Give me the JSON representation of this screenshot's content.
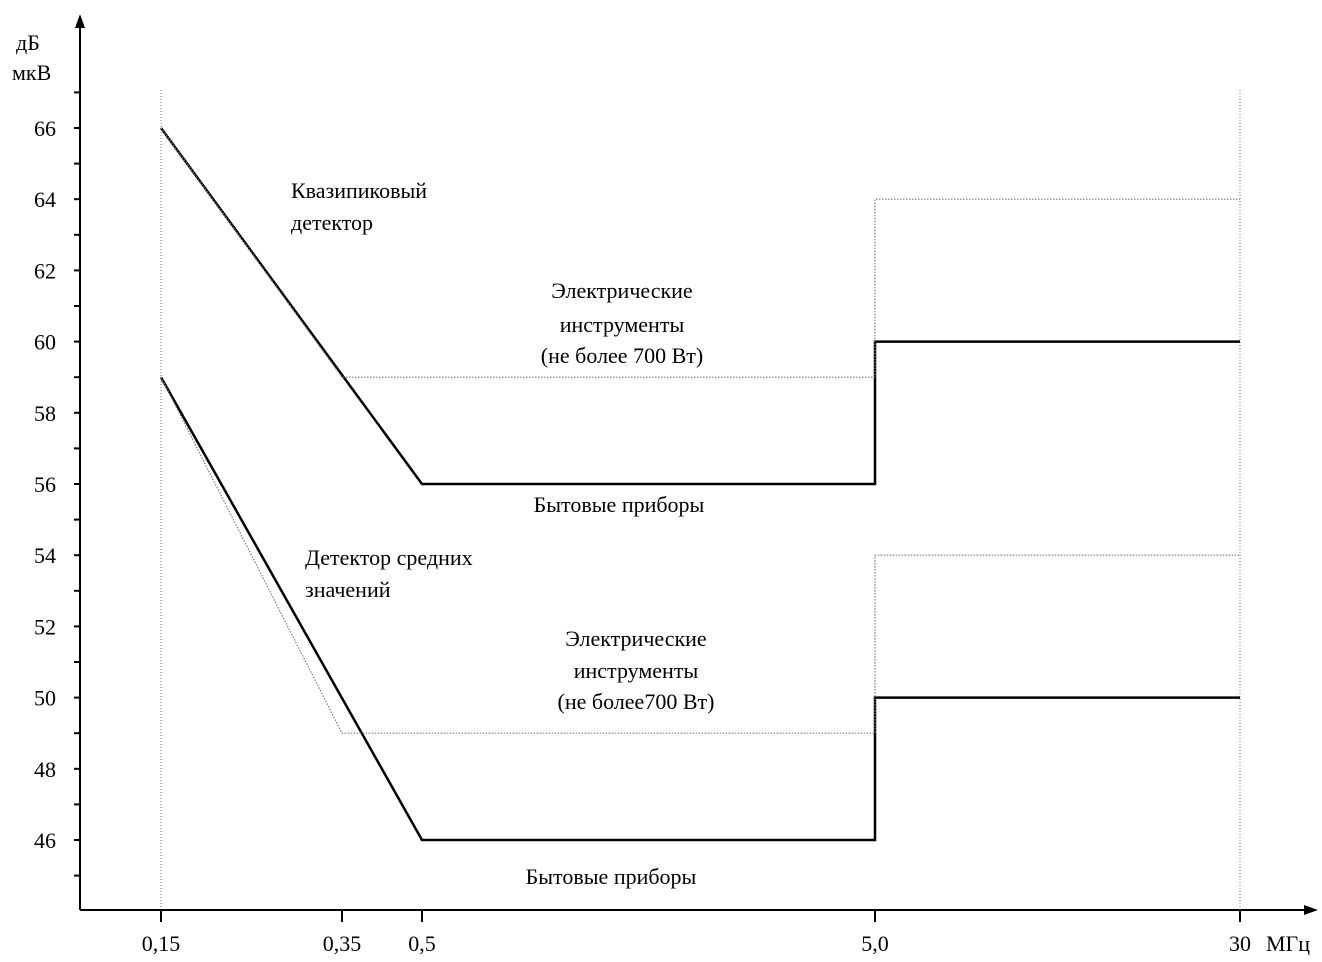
{
  "colors": {
    "axis": "#000000",
    "solid": "#000000",
    "dotted": "#7a7a7a",
    "text": "#000000",
    "background": "#ffffff"
  },
  "chart_data": {
    "type": "line",
    "title": "",
    "ylabel_lines": [
      "дБ",
      "мкВ"
    ],
    "xlabel": "МГц",
    "ylim": [
      44,
      68
    ],
    "x_ticks": [
      {
        "value": 0.15,
        "label": "0,15"
      },
      {
        "value": 0.35,
        "label": "0,35"
      },
      {
        "value": 0.5,
        "label": "0,5"
      },
      {
        "value": 5.0,
        "label": "5,0"
      },
      {
        "value": 30,
        "label": "30"
      }
    ],
    "y_ticks": [
      46,
      48,
      50,
      52,
      54,
      56,
      58,
      60,
      62,
      64,
      66
    ],
    "y_tick_labels": [
      "46",
      "48",
      "50",
      "52",
      "54",
      "56",
      "58",
      "60",
      "62",
      "64",
      "66"
    ],
    "series": [
      {
        "group": "Квазипиковый детектор",
        "style": "solid",
        "points": [
          [
            0.15,
            66
          ],
          [
            0.5,
            56
          ],
          [
            5.0,
            56
          ],
          [
            5.0,
            60
          ],
          [
            30,
            60
          ]
        ]
      },
      {
        "group": "Квазипиковый детектор",
        "style": "dotted",
        "points": [
          [
            0.15,
            66
          ],
          [
            0.35,
            59
          ],
          [
            5.0,
            59
          ],
          [
            5.0,
            64
          ],
          [
            30,
            64
          ]
        ]
      },
      {
        "group": "Детектор средних значений",
        "style": "solid",
        "points": [
          [
            0.15,
            59
          ],
          [
            0.5,
            46
          ],
          [
            5.0,
            46
          ],
          [
            5.0,
            50
          ],
          [
            30,
            50
          ]
        ]
      },
      {
        "group": "Детектор средних значений",
        "style": "dotted",
        "points": [
          [
            0.15,
            59
          ],
          [
            0.35,
            49
          ],
          [
            5.0,
            49
          ],
          [
            5.0,
            54
          ],
          [
            30,
            54
          ]
        ]
      }
    ],
    "annotations": {
      "qp_detector": [
        "Квазипиковый",
        "детектор"
      ],
      "qp_tools": [
        "Электрические",
        "инструменты",
        "(не более 700 Вт)"
      ],
      "qp_household": [
        "Бытовые приборы"
      ],
      "avg_detector": [
        "Детектор средних",
        "значений"
      ],
      "avg_tools": [
        "Электрические",
        "инструменты",
        "(не более700 Вт)"
      ],
      "avg_household": [
        "Бытовые приборы"
      ]
    }
  }
}
